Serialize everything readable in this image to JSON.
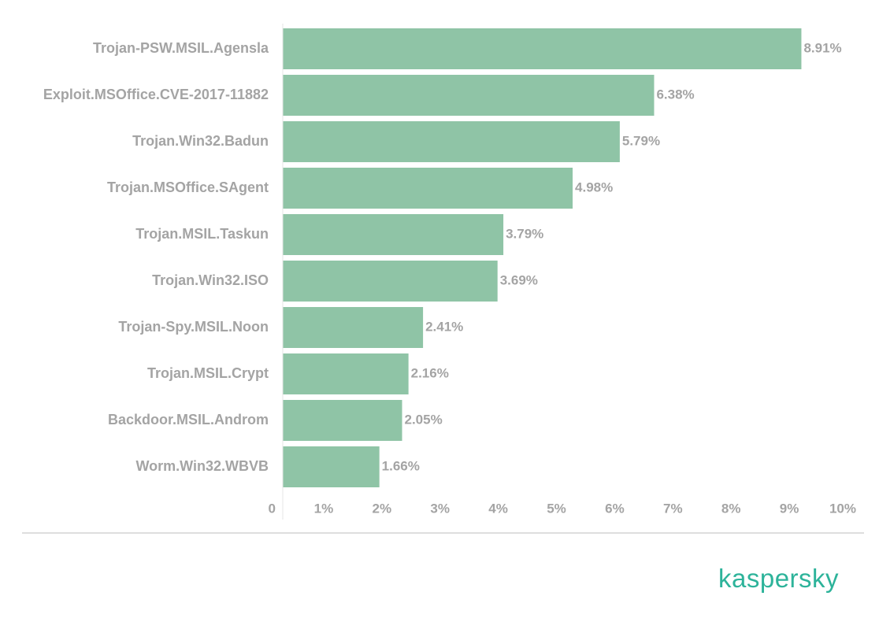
{
  "brand": {
    "name": "kaspersky",
    "color": "#2db39a"
  },
  "chart_data": {
    "type": "bar",
    "orientation": "horizontal",
    "categories": [
      "Trojan-PSW.MSIL.Agensla",
      "Exploit.MSOffice.CVE-2017-11882",
      "Trojan.Win32.Badun",
      "Trojan.MSOffice.SAgent",
      "Trojan.MSIL.Taskun",
      "Trojan.Win32.ISO",
      "Trojan-Spy.MSIL.Noon",
      "Trojan.MSIL.Crypt",
      "Backdoor.MSIL.Androm",
      "Worm.Win32.WBVB"
    ],
    "values": [
      8.91,
      6.38,
      5.79,
      4.98,
      3.79,
      3.69,
      2.41,
      2.16,
      2.05,
      1.66
    ],
    "value_labels": [
      "8.91%",
      "6.38%",
      "5.79%",
      "4.98%",
      "3.79%",
      "3.69%",
      "2.41%",
      "2.16%",
      "2.05%",
      "1.66%"
    ],
    "xlim": [
      0,
      10
    ],
    "xticks": [
      0,
      1,
      2,
      3,
      4,
      5,
      6,
      7,
      8,
      9,
      10
    ],
    "xtick_labels": [
      "0",
      "1%",
      "2%",
      "3%",
      "4%",
      "5%",
      "6%",
      "7%",
      "8%",
      "9%",
      "10%"
    ],
    "bar_color": "#8fc4a6",
    "grid": false,
    "legend": "none",
    "title": "",
    "xlabel": "",
    "ylabel": ""
  }
}
